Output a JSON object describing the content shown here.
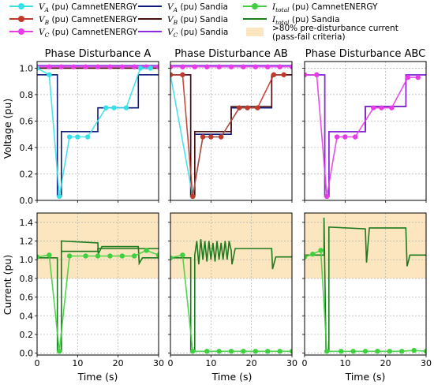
{
  "chart_data": {
    "type": "line",
    "colors": {
      "va_camnet": "#36e0e8",
      "vb_camnet": "#c0392b",
      "vc_camnet": "#e83be8",
      "va_sandia": "#0d1a7a",
      "vb_sandia": "#4a0f0f",
      "vc_sandia": "#8a2be2",
      "i_camnet": "#3fcf3f",
      "i_sandia": "#1e7a1e",
      "band": "#fbe6bf"
    },
    "legend": [
      {
        "key": "va_camnet",
        "math": "V",
        "sub": "A",
        "text": " (pu) CamnetENERGY",
        "style": "marker"
      },
      {
        "key": "vb_camnet",
        "math": "V",
        "sub": "B",
        "text": " (pu) CamnetENERGY",
        "style": "marker"
      },
      {
        "key": "vc_camnet",
        "math": "V",
        "sub": "C",
        "text": " (pu) CamnetENERGY",
        "style": "marker"
      },
      {
        "key": "va_sandia",
        "math": "V",
        "sub": "A",
        "text": " (pu) Sandia",
        "style": "line"
      },
      {
        "key": "vb_sandia",
        "math": "V",
        "sub": "B",
        "text": " (pu) Sandia",
        "style": "line"
      },
      {
        "key": "vc_sandia",
        "math": "V",
        "sub": "C",
        "text": " (pu) Sandia",
        "style": "line"
      },
      {
        "key": "i_camnet",
        "math": "I",
        "sub": "total",
        "text": " (pu) CamnetENERGY",
        "style": "marker"
      },
      {
        "key": "i_sandia",
        "math": "I",
        "sub": "total",
        "text": " (pu) Sandia",
        "style": "line"
      },
      {
        "key": "band",
        "math": "",
        "sub": "",
        "text": ">80% pre-disturbance current",
        "text2": "(pass-fail criteria)",
        "style": "patch"
      }
    ],
    "columns": [
      "Phase Disturbance A",
      "Phase Disturbance AB",
      "Phase Disturbance ABC"
    ],
    "xlabel": "Time (s)",
    "xlim": [
      0,
      30
    ],
    "xticks": [
      "0",
      "10",
      "20",
      "30"
    ],
    "voltage": {
      "ylabel": "Voltage (pu)",
      "ylim": [
        0,
        1.05
      ],
      "yticks": [
        "0.0",
        "0.2",
        "0.4",
        "0.6",
        "0.8",
        "1.0"
      ],
      "panels": [
        {
          "sandia": [
            {
              "key": "vc_sandia",
              "x": [
                0,
                30
              ],
              "y": [
                1.02,
                1.02
              ]
            },
            {
              "key": "vb_sandia",
              "x": [
                0,
                30
              ],
              "y": [
                1.0,
                1.0
              ]
            },
            {
              "key": "va_sandia",
              "x": [
                0,
                5,
                5,
                6,
                6,
                15,
                15,
                25,
                25,
                30
              ],
              "y": [
                0.95,
                0.95,
                0.03,
                0.03,
                0.52,
                0.52,
                0.7,
                0.7,
                0.95,
                0.95
              ]
            }
          ],
          "camnet": [
            {
              "key": "vc_camnet",
              "x": [
                0,
                3,
                6,
                9,
                12,
                15,
                18,
                21,
                24,
                27,
                30
              ],
              "y": [
                1.01,
                1.01,
                1.01,
                1.01,
                1.01,
                1.01,
                1.01,
                1.01,
                1.01,
                1.01,
                1.01
              ]
            },
            {
              "key": "va_camnet",
              "x": [
                0,
                3,
                5.5,
                8,
                10,
                12.5,
                17,
                19,
                22,
                25.5,
                28
              ],
              "y": [
                1.0,
                0.95,
                0.03,
                0.48,
                0.48,
                0.48,
                0.7,
                0.7,
                0.7,
                1.0,
                1.0
              ]
            }
          ]
        },
        {
          "sandia": [
            {
              "key": "vc_sandia",
              "x": [
                0,
                30
              ],
              "y": [
                1.02,
                1.02
              ]
            },
            {
              "key": "va_sandia",
              "x": [
                0,
                5,
                5,
                6,
                6,
                15,
                15,
                25,
                25,
                30
              ],
              "y": [
                0.95,
                0.95,
                0.03,
                0.03,
                0.5,
                0.5,
                0.7,
                0.7,
                0.95,
                0.95
              ]
            },
            {
              "key": "vb_sandia",
              "x": [
                0,
                5,
                5,
                6,
                6,
                15,
                15,
                25,
                25,
                30
              ],
              "y": [
                0.95,
                0.95,
                0.03,
                0.03,
                0.52,
                0.52,
                0.71,
                0.71,
                0.95,
                0.95
              ]
            }
          ],
          "camnet": [
            {
              "key": "vc_camnet",
              "x": [
                0,
                3,
                6,
                9,
                12,
                15,
                18,
                21,
                24,
                27,
                30
              ],
              "y": [
                1.01,
                1.01,
                1.01,
                1.01,
                1.01,
                1.01,
                1.01,
                1.01,
                1.01,
                1.01,
                1.01
              ]
            },
            {
              "key": "va_camnet",
              "x": [
                0,
                5.5,
                8,
                10,
                12.5,
                17,
                19,
                21.5
              ],
              "y": [
                0.95,
                0.03,
                0.48,
                0.48,
                0.48,
                0.7,
                0.7,
                0.7
              ]
            },
            {
              "key": "vb_camnet",
              "x": [
                0,
                3,
                5.5,
                8,
                10,
                12.5,
                17,
                19,
                21.5,
                25.5,
                28
              ],
              "y": [
                0.95,
                0.95,
                0.03,
                0.48,
                0.48,
                0.48,
                0.7,
                0.7,
                0.7,
                0.95,
                0.95
              ]
            }
          ]
        },
        {
          "sandia": [
            {
              "key": "va_sandia",
              "x": [
                0,
                5,
                5,
                6,
                6,
                15,
                15,
                25,
                25,
                30
              ],
              "y": [
                0.95,
                0.95,
                0.03,
                0.03,
                0.52,
                0.52,
                0.71,
                0.71,
                0.95,
                0.95
              ]
            },
            {
              "key": "vb_sandia",
              "x": [
                0,
                5,
                5,
                6,
                6,
                15,
                15,
                25,
                25,
                30
              ],
              "y": [
                0.95,
                0.95,
                0.03,
                0.03,
                0.52,
                0.52,
                0.71,
                0.71,
                0.95,
                0.95
              ]
            },
            {
              "key": "vc_sandia",
              "x": [
                0,
                5,
                5,
                6,
                6,
                15,
                15,
                25,
                25,
                30
              ],
              "y": [
                0.95,
                0.95,
                0.03,
                0.03,
                0.52,
                0.52,
                0.71,
                0.71,
                0.95,
                0.95
              ]
            }
          ],
          "camnet": [
            {
              "key": "vc_camnet",
              "x": [
                0,
                3,
                5.5,
                8,
                10,
                12.5,
                17,
                19,
                21.5,
                25.5,
                28
              ],
              "y": [
                0.95,
                0.95,
                0.03,
                0.48,
                0.48,
                0.48,
                0.7,
                0.7,
                0.7,
                0.93,
                0.93
              ]
            }
          ]
        }
      ]
    },
    "current": {
      "ylabel": "Current (pu)",
      "ylim": [
        -0.02,
        1.5
      ],
      "yticks": [
        "0.0",
        "0.2",
        "0.4",
        "0.6",
        "0.8",
        "1.0",
        "1.2",
        "1.4"
      ],
      "band": [
        0.8,
        1.5
      ],
      "panels": [
        {
          "sandia": [
            {
              "key": "i_sandia",
              "x": [
                0,
                5,
                5,
                6,
                6,
                15,
                15.1,
                16,
                25,
                25.2,
                26,
                30
              ],
              "y": [
                1.02,
                1.02,
                0.02,
                0.02,
                1.2,
                1.18,
                1.06,
                1.14,
                1.14,
                0.96,
                1.02,
                1.02
              ]
            },
            {
              "key": "i_sandia",
              "x": [
                6,
                15,
                15,
                25,
                25,
                30
              ],
              "y": [
                1.09,
                1.09,
                1.12,
                1.12,
                1.12,
                1.12
              ]
            }
          ],
          "camnet": [
            {
              "key": "i_camnet",
              "x": [
                0,
                3,
                5.5,
                8,
                12,
                15,
                18,
                21,
                24,
                27,
                30
              ],
              "y": [
                1.03,
                1.05,
                0.02,
                1.04,
                1.04,
                1.04,
                1.04,
                1.04,
                1.04,
                1.1,
                1.05
              ]
            }
          ]
        },
        {
          "sandia": [
            {
              "key": "i_sandia",
              "x": [
                0,
                5,
                5,
                6,
                6,
                6.5,
                7,
                7.5,
                8,
                8.5,
                9,
                9.5,
                10,
                10.5,
                11,
                11.5,
                12,
                12.5,
                13,
                13.5,
                14,
                14.5,
                15,
                15.2,
                16,
                25,
                25.2,
                26,
                30
              ],
              "y": [
                1.02,
                1.02,
                0.02,
                0.02,
                1.05,
                1.2,
                0.95,
                1.22,
                1.0,
                1.2,
                0.98,
                1.2,
                1.0,
                1.18,
                0.98,
                1.2,
                1.0,
                1.18,
                1.0,
                1.2,
                1.0,
                1.2,
                1.1,
                0.95,
                1.12,
                1.12,
                0.9,
                1.03,
                1.03
              ]
            }
          ],
          "camnet": [
            {
              "key": "i_camnet",
              "x": [
                0,
                3,
                5.5,
                9,
                12,
                15,
                18,
                21,
                24,
                27,
                30
              ],
              "y": [
                1.02,
                1.05,
                0.02,
                0.02,
                0.02,
                0.02,
                0.02,
                0.02,
                0.02,
                0.02,
                0.02
              ]
            }
          ]
        },
        {
          "sandia": [
            {
              "key": "i_sandia",
              "x": [
                0,
                4.8,
                4.8,
                5.3,
                5.3,
                6,
                6,
                15,
                15.3,
                16,
                25,
                25.3,
                26,
                30
              ],
              "y": [
                1.05,
                1.05,
                1.45,
                0.02,
                0.02,
                0.02,
                1.35,
                1.33,
                0.97,
                1.34,
                1.34,
                0.93,
                1.05,
                1.05
              ]
            }
          ],
          "camnet": [
            {
              "key": "i_camnet",
              "x": [
                0,
                2,
                4,
                5.5,
                9,
                12,
                15,
                18,
                21,
                24,
                27,
                30
              ],
              "y": [
                1.03,
                1.06,
                1.1,
                0.02,
                0.02,
                0.02,
                0.02,
                0.02,
                0.02,
                0.02,
                0.03,
                0.02
              ]
            }
          ]
        }
      ]
    }
  }
}
